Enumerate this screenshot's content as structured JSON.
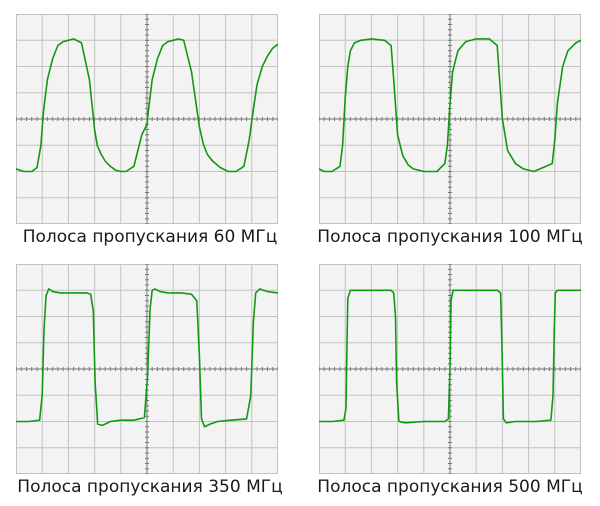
{
  "colors": {
    "trace": "#119911",
    "grid": "#c2c2c2",
    "screen": "#f3f3f3",
    "axis": "#777777"
  },
  "chart_data": [
    {
      "type": "line",
      "title": "",
      "caption": "Полоса пропускания 60 МГц",
      "bandwidth_mhz": 60,
      "grid": true,
      "grid_divisions": {
        "x": 10,
        "y": 8
      },
      "xlim": [
        0,
        10
      ],
      "ylim": [
        -4,
        4
      ],
      "series": [
        {
          "x": [
            0,
            0.3,
            0.6,
            0.8,
            0.95,
            1.05,
            1.2,
            1.4,
            1.6,
            1.8,
            2.0,
            2.2,
            2.5,
            2.8,
            3.0,
            3.1,
            3.25,
            3.4,
            3.6,
            3.8,
            4.0,
            4.2,
            4.5,
            4.8,
            5.0,
            5.05,
            5.2,
            5.4,
            5.6,
            5.8,
            6.0,
            6.2,
            6.4,
            6.7,
            7.0,
            7.15,
            7.3,
            7.5,
            7.8,
            8.1,
            8.4,
            8.7,
            8.9,
            9.05,
            9.2,
            9.4,
            9.6,
            9.8,
            10
          ],
          "y": [
            -1.9,
            -2.0,
            -2.0,
            -1.85,
            -1.0,
            0.3,
            1.5,
            2.3,
            2.8,
            2.95,
            3.0,
            3.05,
            2.9,
            1.5,
            -0.4,
            -1.0,
            -1.35,
            -1.6,
            -1.8,
            -1.95,
            -2.0,
            -2.0,
            -1.8,
            -0.6,
            -0.2,
            0.3,
            1.5,
            2.3,
            2.8,
            2.95,
            3.0,
            3.05,
            3.0,
            1.8,
            -0.3,
            -0.95,
            -1.35,
            -1.6,
            -1.85,
            -2.0,
            -2.0,
            -1.8,
            -0.8,
            0.3,
            1.3,
            2.0,
            2.4,
            2.7,
            2.85
          ]
        }
      ]
    },
    {
      "type": "line",
      "title": "",
      "caption": "Полоса пропускания 100 МГц",
      "bandwidth_mhz": 100,
      "grid": true,
      "grid_divisions": {
        "x": 10,
        "y": 8
      },
      "xlim": [
        0,
        10
      ],
      "ylim": [
        -4,
        4
      ],
      "series": [
        {
          "x": [
            0,
            0.2,
            0.5,
            0.8,
            0.9,
            1.0,
            1.1,
            1.2,
            1.35,
            1.6,
            2.0,
            2.5,
            2.75,
            2.85,
            3.0,
            3.2,
            3.4,
            3.6,
            3.8,
            4.0,
            4.5,
            4.8,
            4.9,
            5.0,
            5.1,
            5.3,
            5.6,
            6.0,
            6.5,
            6.8,
            7.0,
            7.2,
            7.5,
            7.8,
            8.2,
            8.9,
            9.0,
            9.1,
            9.3,
            9.5,
            9.8,
            10
          ],
          "y": [
            -1.9,
            -2.0,
            -2.0,
            -1.8,
            -1.0,
            0.8,
            2.0,
            2.6,
            2.9,
            3.0,
            3.05,
            3.0,
            2.8,
            1.5,
            -0.6,
            -1.4,
            -1.75,
            -1.9,
            -1.95,
            -2.0,
            -2.0,
            -1.7,
            -1.0,
            0.6,
            1.8,
            2.6,
            2.95,
            3.05,
            3.05,
            2.8,
            0.0,
            -1.2,
            -1.7,
            -1.9,
            -2.0,
            -1.7,
            -0.8,
            0.6,
            2.0,
            2.6,
            2.9,
            3.0
          ]
        }
      ]
    },
    {
      "type": "line",
      "title": "",
      "caption": "Полоса пропускания 350 МГц",
      "bandwidth_mhz": 350,
      "grid": true,
      "grid_divisions": {
        "x": 10,
        "y": 8
      },
      "xlim": [
        0,
        10
      ],
      "ylim": [
        -4,
        4
      ],
      "series": [
        {
          "x": [
            0,
            0.5,
            0.9,
            1.0,
            1.07,
            1.15,
            1.25,
            1.4,
            1.7,
            2.2,
            2.7,
            2.85,
            2.95,
            3.02,
            3.12,
            3.3,
            3.6,
            4.0,
            4.5,
            4.9,
            5.02,
            5.12,
            5.2,
            5.3,
            5.5,
            5.8,
            6.3,
            6.7,
            6.9,
            7.0,
            7.08,
            7.2,
            7.4,
            7.7,
            8.2,
            8.8,
            8.96,
            9.06,
            9.15,
            9.3,
            9.6,
            10
          ],
          "y": [
            -2.0,
            -2.0,
            -1.95,
            -1.0,
            1.5,
            2.8,
            3.05,
            2.95,
            2.9,
            2.9,
            2.9,
            2.85,
            2.2,
            -0.5,
            -2.1,
            -2.15,
            -2.0,
            -1.95,
            -1.95,
            -1.85,
            -0.3,
            2.3,
            3.0,
            3.05,
            2.95,
            2.9,
            2.9,
            2.85,
            2.6,
            0.5,
            -1.9,
            -2.2,
            -2.1,
            -2.0,
            -1.95,
            -1.9,
            -1.0,
            1.8,
            2.9,
            3.05,
            2.95,
            2.9
          ]
        }
      ]
    },
    {
      "type": "line",
      "title": "",
      "caption": "Полоса пропускания 500 МГц",
      "bandwidth_mhz": 500,
      "grid": true,
      "grid_divisions": {
        "x": 10,
        "y": 8
      },
      "xlim": [
        0,
        10
      ],
      "ylim": [
        -4,
        4
      ],
      "series": [
        {
          "x": [
            0,
            0.5,
            0.95,
            1.03,
            1.06,
            1.1,
            1.2,
            1.5,
            2.2,
            2.75,
            2.85,
            2.92,
            2.96,
            3.05,
            3.3,
            4.0,
            4.8,
            4.94,
            5.0,
            5.04,
            5.12,
            5.35,
            6.2,
            6.8,
            6.93,
            6.98,
            7.04,
            7.15,
            7.5,
            8.3,
            8.85,
            8.93,
            8.98,
            9.02,
            9.1,
            9.4,
            10
          ],
          "y": [
            -2.0,
            -2.0,
            -1.95,
            -1.5,
            0.5,
            2.7,
            3.0,
            3.0,
            3.0,
            3.0,
            2.9,
            2.0,
            -0.5,
            -2.0,
            -2.05,
            -2.0,
            -2.0,
            -1.9,
            0.0,
            2.6,
            3.0,
            3.0,
            3.0,
            3.0,
            2.9,
            1.0,
            -1.9,
            -2.05,
            -2.0,
            -2.0,
            -1.95,
            -1.0,
            1.5,
            2.9,
            3.0,
            3.0,
            3.0
          ]
        }
      ]
    }
  ]
}
